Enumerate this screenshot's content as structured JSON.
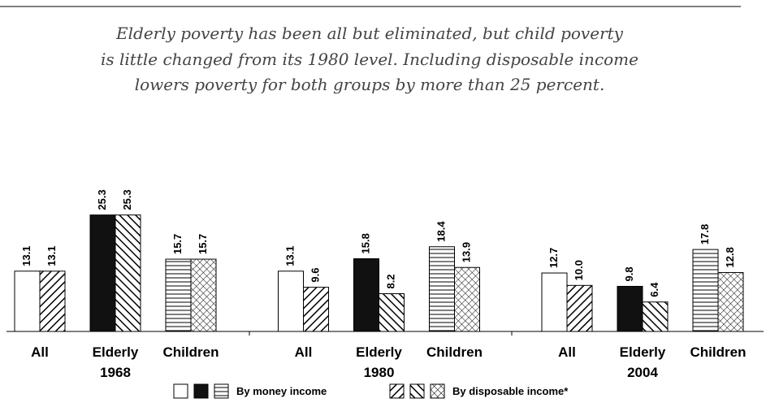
{
  "chart_data": {
    "type": "bar",
    "title": [
      "Elderly poverty has been all but eliminated, but child poverty",
      "is little changed from its 1980 level. Including disposable income",
      "lowers poverty for both groups by more than 25 percent."
    ],
    "categories": [
      "All",
      "Elderly",
      "Children",
      "All",
      "Elderly",
      "Children",
      "All",
      "Elderly",
      "Children"
    ],
    "groups": [
      "1968",
      "1980",
      "2004"
    ],
    "series": [
      {
        "name": "By money income",
        "patterns": [
          "white",
          "black",
          "horizontal"
        ],
        "values": [
          13.1,
          25.3,
          15.7,
          13.1,
          15.8,
          18.4,
          12.7,
          9.8,
          17.8
        ],
        "value_labels": [
          "13.1",
          "25.3",
          "15.7",
          "13.1",
          "15.8",
          "18.4",
          "12.7",
          "9.8",
          "17.8"
        ]
      },
      {
        "name": "By disposable income*",
        "patterns": [
          "diagonal",
          "backdiagonal",
          "crosshatch"
        ],
        "values": [
          13.1,
          25.3,
          15.7,
          9.6,
          8.2,
          13.9,
          10.0,
          6.4,
          12.8
        ],
        "value_labels": [
          "13.1",
          "25.3",
          "15.7",
          "9.6",
          "8.2",
          "13.9",
          "10.0",
          "6.4",
          "12.8"
        ]
      }
    ],
    "ylim": [
      0,
      30
    ]
  }
}
